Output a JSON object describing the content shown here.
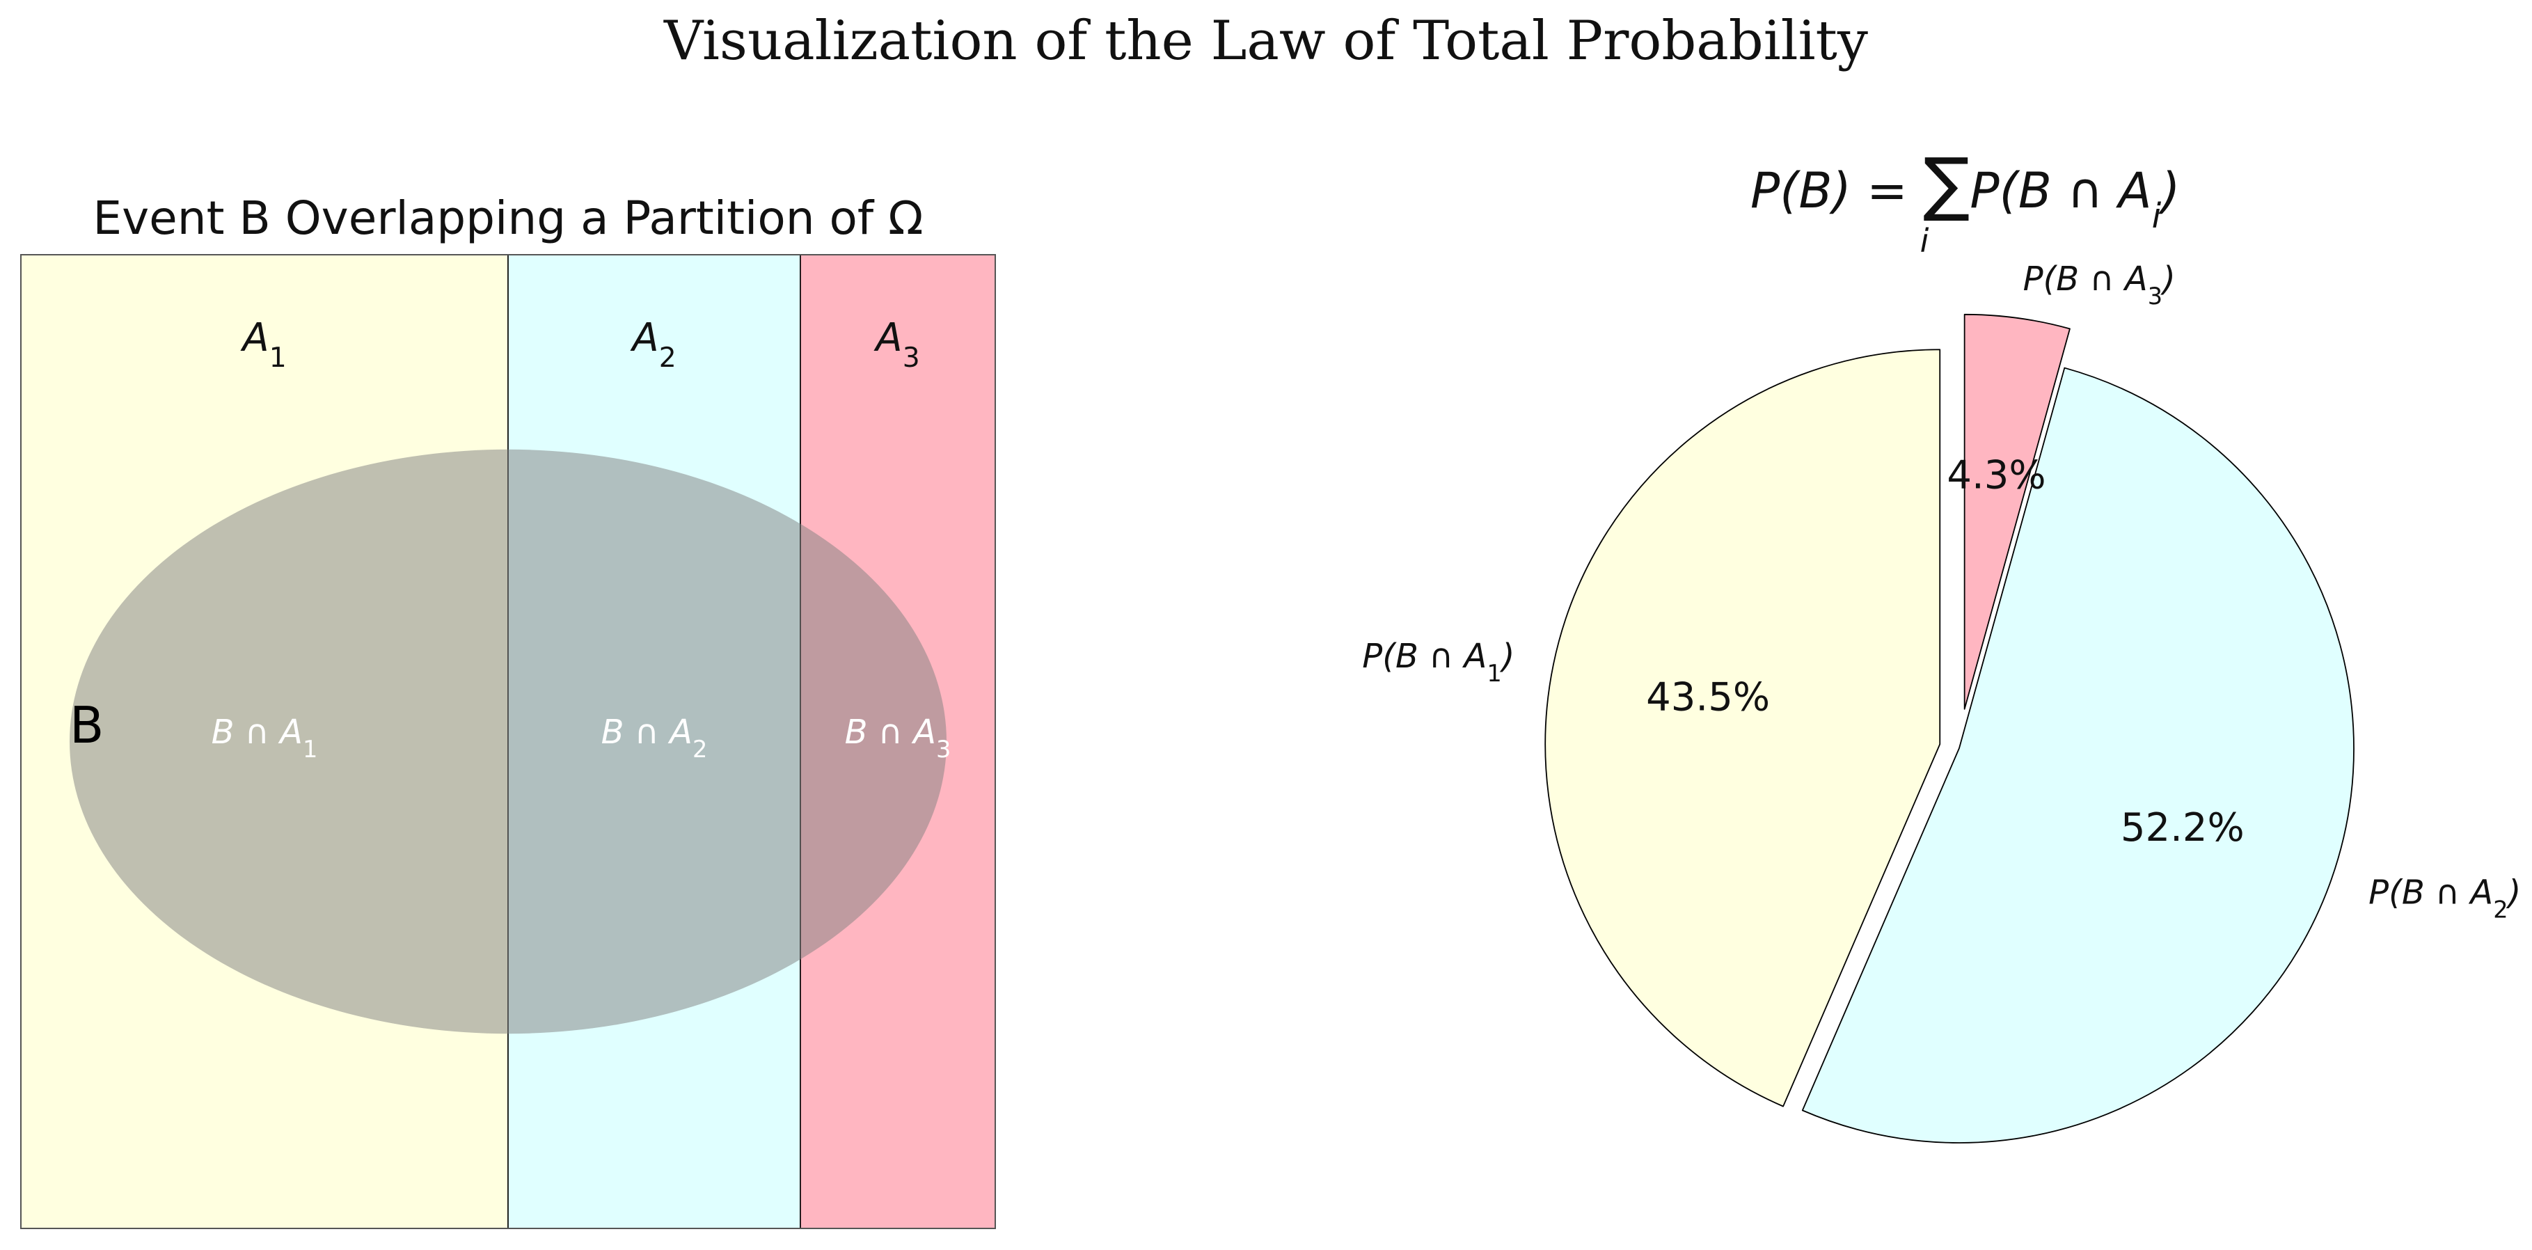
{
  "title": "Visualization of the Law of Total Probability",
  "colors": {
    "a1": "#ffffe0",
    "a2": "#e0ffff",
    "a3": "#ffb6c1",
    "event_b": "#808080",
    "edge": "#000000"
  },
  "chart_data": [
    {
      "type": "diagram",
      "title": "Event B Overlapping a Partition of Ω",
      "partitions": [
        {
          "label_main": "A",
          "label_sub": "1",
          "inter_main": "B ∩ A",
          "inter_sub": "1",
          "color": "#ffffe0",
          "x_from": 0.0,
          "x_to": 0.5
        },
        {
          "label_main": "A",
          "label_sub": "2",
          "inter_main": "B ∩ A",
          "inter_sub": "2",
          "color": "#e0ffff",
          "x_from": 0.5,
          "x_to": 0.8
        },
        {
          "label_main": "A",
          "label_sub": "3",
          "inter_main": "B ∩ A",
          "inter_sub": "3",
          "color": "#ffb6c1",
          "x_from": 0.8,
          "x_to": 1.0
        }
      ],
      "event_label": "B",
      "event_center": [
        0.5,
        0.5
      ],
      "event_width": 0.9,
      "event_height": 0.6,
      "event_opacity": 0.5
    },
    {
      "type": "pie",
      "title_formula": {
        "lhs": "P(B) = ",
        "sum_symbol": "∑",
        "sum_index": "i",
        "rhs_main": "P(B ∩ A",
        "rhs_sub": "i",
        "rhs_close": ")"
      },
      "slices": [
        {
          "label_main": "P(B ∩ A",
          "label_sub": "1",
          "label_close": ")",
          "value": 43.5,
          "pct_label": "43.5%",
          "color": "#ffffe0",
          "explode": 0.05
        },
        {
          "label_main": "P(B ∩ A",
          "label_sub": "2",
          "label_close": ")",
          "value": 52.2,
          "pct_label": "52.2%",
          "color": "#e0ffff",
          "explode": 0.0
        },
        {
          "label_main": "P(B ∩ A",
          "label_sub": "3",
          "label_close": ")",
          "value": 4.3,
          "pct_label": "4.3%",
          "color": "#ffb6c1",
          "explode": 0.1
        }
      ],
      "start_angle_deg": 90,
      "direction": "counterclockwise"
    }
  ]
}
